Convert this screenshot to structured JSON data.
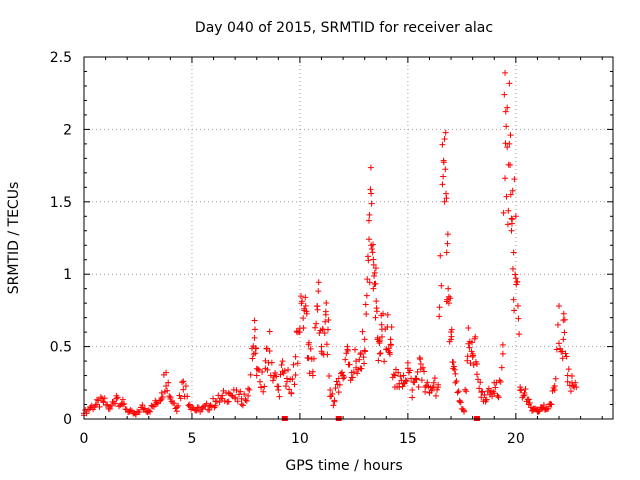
{
  "chart_data": {
    "type": "scatter",
    "title": "Day 040 of 2015, SRMTID for receiver alac",
    "xlabel": "GPS time / hours",
    "ylabel": "SRMTID / TECUs",
    "xlim": [
      0,
      24.5
    ],
    "ylim": [
      0,
      2.5
    ],
    "xticks": [
      0,
      5,
      10,
      15,
      20
    ],
    "xtick_labels": [
      "0",
      "5",
      "10",
      "15",
      "20"
    ],
    "yticks": [
      0,
      0.5,
      1,
      1.5,
      2,
      2.5
    ],
    "ytick_labels": [
      "0",
      "0.5",
      "1",
      "1.5",
      "2",
      "2.5"
    ],
    "grid": true,
    "marker": "+",
    "series": [
      {
        "name": "SRMTID",
        "color": "#ff0000",
        "x": [
          0.0,
          0.3,
          0.6,
          0.9,
          1.2,
          1.5,
          1.8,
          2.1,
          2.4,
          2.7,
          3.0,
          3.3,
          3.6,
          3.8,
          4.0,
          4.3,
          4.6,
          4.9,
          5.2,
          5.5,
          5.8,
          6.1,
          6.4,
          6.7,
          7.0,
          7.3,
          7.6,
          7.9,
          8.0,
          8.2,
          8.4,
          8.6,
          8.8,
          9.0,
          9.2,
          9.4,
          9.6,
          9.8,
          10.0,
          10.2,
          10.4,
          10.6,
          10.8,
          11.0,
          11.2,
          11.4,
          11.6,
          11.8,
          12.0,
          12.2,
          12.4,
          12.6,
          12.8,
          13.0,
          13.2,
          13.3,
          13.4,
          13.5,
          13.6,
          13.7,
          13.8,
          14.0,
          14.2,
          14.4,
          14.6,
          14.8,
          15.0,
          15.2,
          15.4,
          15.6,
          15.8,
          16.0,
          16.2,
          16.4,
          16.6,
          16.7,
          16.8,
          16.9,
          17.0,
          17.1,
          17.2,
          17.4,
          17.6,
          17.8,
          18.0,
          18.2,
          18.4,
          18.6,
          18.8,
          19.0,
          19.2,
          19.4,
          19.5,
          19.6,
          19.7,
          19.8,
          19.9,
          20.0,
          20.2,
          20.4,
          20.6,
          20.8,
          21.0,
          21.2,
          21.4,
          21.6,
          21.8,
          22.0,
          22.2,
          22.4,
          22.6,
          22.8
        ],
        "y": [
          0.04,
          0.08,
          0.1,
          0.12,
          0.07,
          0.16,
          0.1,
          0.05,
          0.03,
          0.08,
          0.06,
          0.1,
          0.18,
          0.32,
          0.15,
          0.08,
          0.26,
          0.1,
          0.06,
          0.07,
          0.09,
          0.12,
          0.14,
          0.18,
          0.15,
          0.14,
          0.16,
          0.56,
          0.3,
          0.22,
          0.35,
          0.47,
          0.3,
          0.2,
          0.33,
          0.28,
          0.18,
          0.43,
          0.6,
          0.75,
          0.42,
          0.3,
          0.78,
          0.5,
          0.72,
          0.2,
          0.12,
          0.28,
          0.3,
          0.5,
          0.32,
          0.4,
          0.35,
          0.55,
          1.37,
          1.2,
          0.9,
          0.7,
          0.55,
          0.45,
          0.62,
          0.48,
          0.55,
          0.3,
          0.22,
          0.3,
          0.35,
          0.2,
          0.28,
          0.38,
          0.22,
          0.18,
          0.25,
          0.22,
          1.62,
          1.5,
          1.15,
          0.8,
          0.55,
          0.35,
          0.25,
          0.12,
          0.05,
          0.52,
          0.45,
          0.38,
          0.15,
          0.12,
          0.18,
          0.25,
          0.15,
          0.45,
          2.39,
          2.15,
          1.9,
          1.3,
          1.15,
          1.4,
          0.22,
          0.18,
          0.1,
          0.06,
          0.05,
          0.08,
          0.07,
          0.1,
          0.2,
          0.78,
          0.55,
          0.3,
          0.25,
          0.22
        ],
        "zero_markers_x": [
          9.3,
          11.8,
          18.2
        ]
      }
    ]
  }
}
